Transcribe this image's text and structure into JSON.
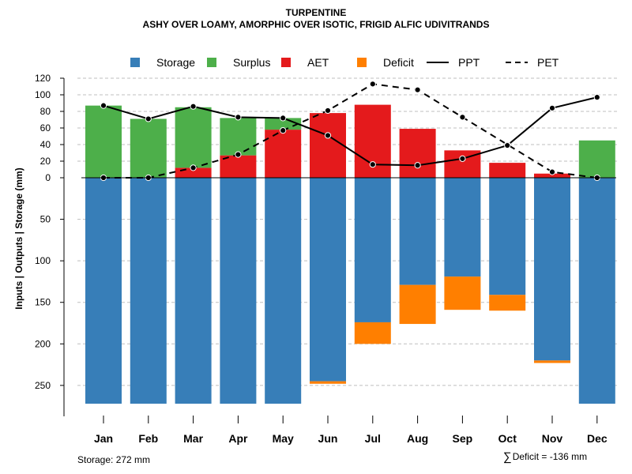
{
  "header": {
    "title": "TURPENTINE",
    "subtitle": "ASHY OVER LOAMY, AMORPHIC OVER ISOTIC, FRIGID ALFIC UDIVITRANDS"
  },
  "footer": {
    "storage_note": "Storage: 272 mm",
    "deficit_symbol": "∑",
    "deficit_note": "Deficit = -136 mm"
  },
  "colors": {
    "storage": "#377EB8",
    "surplus": "#4DAF4A",
    "aet": "#E41A1C",
    "deficit": "#FF7F00",
    "grid": "#bfbfbf",
    "line": "#000000"
  },
  "chart_data": {
    "type": "bar",
    "title": "TURPENTINE",
    "subtitle": "ASHY OVER LOAMY, AMORPHIC OVER ISOTIC, FRIGID ALFIC UDIVITRANDS",
    "ylabel": "Inputs | Outputs | Storage    (mm)",
    "xlabel": "",
    "ylim_upper": [
      0,
      120
    ],
    "ylim_lower": [
      0,
      272
    ],
    "upper_ticks": [
      120,
      100,
      80,
      60,
      40,
      20,
      0
    ],
    "lower_ticks": [
      50,
      100,
      150,
      200,
      250
    ],
    "grid": true,
    "legend_position": "top",
    "legend": [
      {
        "label": "Storage",
        "kind": "box",
        "color_key": "storage"
      },
      {
        "label": "Surplus",
        "kind": "box",
        "color_key": "surplus"
      },
      {
        "label": "AET",
        "kind": "box",
        "color_key": "aet"
      },
      {
        "label": "Deficit",
        "kind": "box",
        "color_key": "deficit"
      },
      {
        "label": "PPT",
        "kind": "solid"
      },
      {
        "label": "PET",
        "kind": "dashed"
      }
    ],
    "categories": [
      "Jan",
      "Feb",
      "Mar",
      "Apr",
      "May",
      "Jun",
      "Jul",
      "Aug",
      "Sep",
      "Oct",
      "Nov",
      "Dec"
    ],
    "series": [
      {
        "name": "Storage",
        "values": [
          272,
          272,
          272,
          272,
          272,
          245,
          174,
          129,
          119,
          141,
          220,
          272
        ]
      },
      {
        "name": "Deficit",
        "values": [
          0,
          0,
          0,
          0,
          0,
          3,
          26,
          47,
          40,
          19,
          3,
          0
        ]
      },
      {
        "name": "AET",
        "values": [
          0,
          0,
          12,
          27,
          58,
          78,
          88,
          59,
          33,
          18,
          5,
          0
        ]
      },
      {
        "name": "Surplus",
        "values": [
          87,
          71,
          73,
          45,
          14,
          0,
          0,
          0,
          0,
          0,
          0,
          45
        ]
      },
      {
        "name": "PPT",
        "values": [
          87,
          71,
          86,
          73,
          72,
          51,
          16,
          15,
          23,
          39,
          84,
          97
        ]
      },
      {
        "name": "PET",
        "values": [
          0,
          0,
          12,
          28,
          57,
          81,
          113,
          106,
          73,
          40,
          7,
          0
        ]
      }
    ]
  }
}
